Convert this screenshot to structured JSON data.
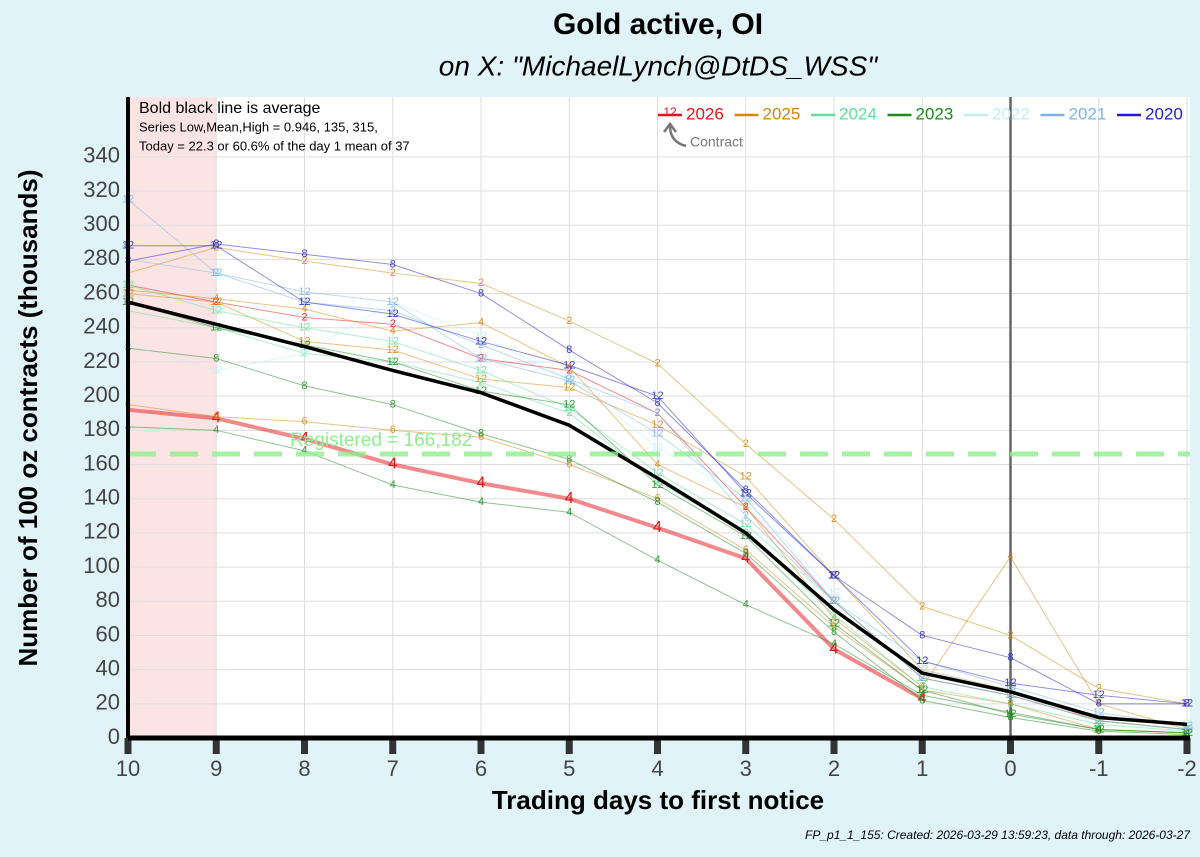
{
  "chart_data": {
    "type": "line",
    "title": "Gold active, OI",
    "subtitle": "on X:   \"MichaelLynch@DtDS_WSS\"",
    "x_label": "Trading days to first notice",
    "y_label": "Number of 100 oz contracts (thousands)",
    "notes": [
      "Bold black line is average",
      "Series Low,Mean,High = 0.946,    135, 315,",
      "Today = 22.3 or 60.6% of the day 1 mean of   37"
    ],
    "footer": "FP_p1_1_155: Created: 2026-03-29 13:59:23, data through: 2026-03-27",
    "legend_contract": "12",
    "legend_contract_caption": "Contract",
    "x": [
      10,
      9,
      8,
      7,
      6,
      5,
      4,
      3,
      2,
      1,
      0,
      -1,
      -2
    ],
    "xlim": [
      10,
      -2
    ],
    "xticks": [
      10,
      9,
      8,
      7,
      6,
      5,
      4,
      3,
      2,
      1,
      0,
      -1,
      -2
    ],
    "ylim": [
      0,
      375
    ],
    "yticks": [
      0,
      20,
      40,
      60,
      80,
      100,
      120,
      140,
      160,
      180,
      200,
      220,
      240,
      260,
      280,
      300,
      320,
      340
    ],
    "grid": true,
    "shaded_x": [
      10,
      9
    ],
    "vline_x": 0,
    "hline": {
      "value": 166.182,
      "label": "Registered = 166,182"
    },
    "average": {
      "color": "#000000",
      "values": [
        255,
        242,
        229,
        215,
        202,
        183,
        152,
        120,
        75,
        38,
        27,
        12,
        8
      ]
    },
    "series": [
      {
        "name": "2026",
        "color": "#e8131c",
        "contracts": [
          {
            "label": "4",
            "values": [
              192,
              187,
              175,
              160,
              149,
              140,
              123,
              105,
              52,
              23,
              null,
              null,
              null
            ]
          },
          {
            "label": "2",
            "values": [
              265,
              255,
              246,
              242,
              222,
              215,
              190,
              135,
              80,
              35,
              25,
              10,
              5
            ]
          }
        ]
      },
      {
        "name": "2025",
        "color": "#d4870b",
        "contracts": [
          {
            "label": "2",
            "values": [
              272,
              287,
              279,
              272,
              266,
              244,
              219,
              172,
              128,
              77,
              60,
              29,
              20
            ]
          },
          {
            "label": "12",
            "values": [
              260,
              255,
              232,
              227,
              210,
              205,
              183,
              153,
              95,
              40,
              28,
              10,
              5
            ]
          },
          {
            "label": "4",
            "values": [
              262,
              257,
              251,
              238,
              243,
              217,
              160,
              135,
              70,
              30,
              106,
              20,
              5
            ]
          },
          {
            "label": "6",
            "values": [
              195,
              188,
              185,
              180,
              176,
              160,
              140,
              110,
              65,
              28,
              20,
              5,
              3
            ]
          }
        ]
      },
      {
        "name": "2024",
        "color": "#5ee09a",
        "contracts": [
          {
            "label": "12",
            "values": [
              265,
              250,
              240,
              232,
              215,
              193,
              155,
              125,
              80,
              35,
              25,
              10,
              5
            ]
          },
          {
            "label": "2",
            "values": [
              250,
              240,
              225,
              220,
              208,
              190,
              150,
              120,
              72,
              30,
              20,
              8,
              4
            ]
          }
        ]
      },
      {
        "name": "2023",
        "color": "#1d8a1d",
        "contracts": [
          {
            "label": "4",
            "values": [
              182,
              180,
              168,
              148,
              138,
              132,
              104,
              78,
              55,
              25,
              15,
              5,
              3
            ]
          },
          {
            "label": "8",
            "values": [
              228,
              222,
              206,
              195,
              178,
              163,
              138,
              108,
              62,
              22,
              12,
              4,
              2
            ]
          },
          {
            "label": "12",
            "values": [
              255,
              240,
              230,
              220,
              203,
              195,
              148,
              118,
              67,
              28,
              14,
              5,
              3
            ]
          }
        ]
      },
      {
        "name": "2022",
        "color": "#bdeff5",
        "contracts": [
          {
            "label": "12",
            "values": [
              230,
              215,
              225,
              255,
              235,
              210,
              170,
              140,
              85,
              40,
              28,
              12,
              8
            ]
          }
        ]
      },
      {
        "name": "2021",
        "color": "#7ab5ea",
        "contracts": [
          {
            "label": "12",
            "values": [
              315,
              272,
              261,
              255,
              222,
              209,
              178,
              140,
              80,
              45,
              30,
              15,
              7
            ]
          },
          {
            "label": "2",
            "values": [
              280,
              272,
              255,
              250,
              230,
              210,
              190,
              130,
              80,
              35,
              25,
              10,
              5
            ]
          }
        ]
      },
      {
        "name": "2020",
        "color": "#1f1fd0",
        "contracts": [
          {
            "label": "8",
            "values": [
              279,
              289,
              283,
              277,
              260,
              227,
              196,
              145,
              95,
              60,
              47,
              20,
              20
            ]
          },
          {
            "label": "12",
            "values": [
              288,
              288,
              255,
              248,
              232,
              218,
              200,
              143,
              95,
              45,
              32,
              25,
              20
            ]
          }
        ]
      }
    ]
  }
}
